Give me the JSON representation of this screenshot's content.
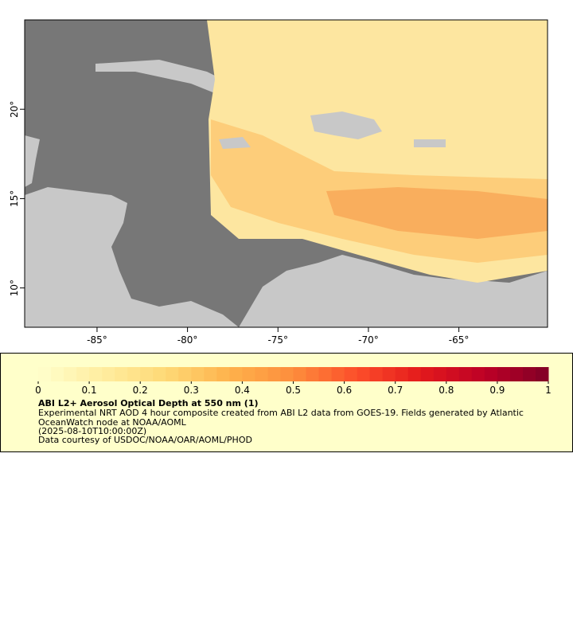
{
  "map": {
    "xlim": [
      -89,
      -60.1
    ],
    "ylim": [
      7.8,
      25
    ],
    "xticks": [
      {
        "value": -85,
        "label": "-85°"
      },
      {
        "value": -80,
        "label": "-80°"
      },
      {
        "value": -75,
        "label": "-75°"
      },
      {
        "value": -70,
        "label": "-70°"
      },
      {
        "value": -65,
        "label": "-65°"
      }
    ],
    "yticks": [
      {
        "value": 10,
        "label": "10°"
      },
      {
        "value": 15,
        "label": "15°"
      },
      {
        "value": 20,
        "label": "20°"
      }
    ]
  },
  "legend": {
    "colorbar": {
      "range": [
        0,
        1
      ],
      "ticks": [
        0,
        0.1,
        0.2,
        0.3,
        0.4,
        0.5,
        0.6,
        0.7,
        0.8,
        0.9,
        1
      ],
      "colors": [
        "#ffffcc",
        "#ffeda0",
        "#fed976",
        "#feb24c",
        "#fd8d3c",
        "#fc4e2a",
        "#e31a1c",
        "#bd0026",
        "#800026"
      ]
    },
    "title": "ABI L2+ Aerosol Optical Depth at 550 nm (1)",
    "description": "Experimental NRT AOD 4 hour composite created from ABI L2 data from GOES-19. Fields generated by Atlantic OceanWatch node at NOAA/AOML",
    "time": "(2025-08-10T10:00:00Z)",
    "credit": "Data courtesy of USDOC/NOAA/OAR/AOML/PHOD"
  }
}
